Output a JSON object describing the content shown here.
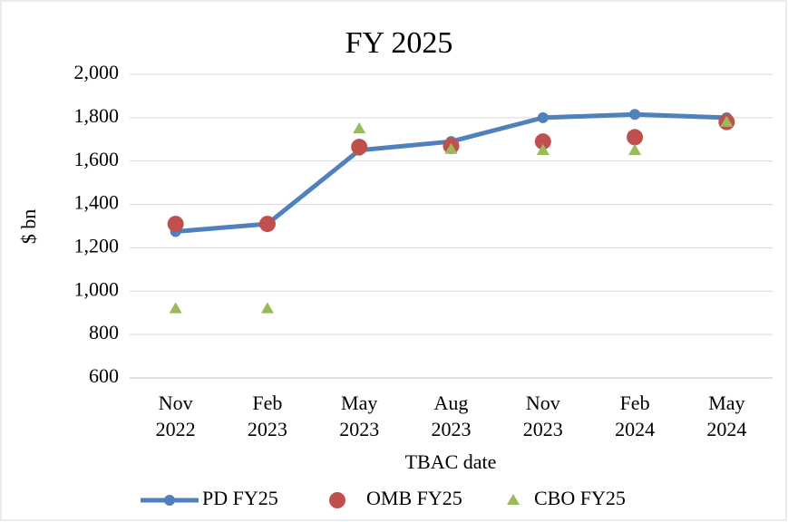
{
  "chart_data": {
    "type": "line",
    "title": "FY 2025",
    "y_label": "$ bn",
    "x_label": "TBAC date",
    "categories": [
      "Nov 2022",
      "Feb 2023",
      "May 2023",
      "Aug 2023",
      "Nov 2023",
      "Feb 2024",
      "May 2024"
    ],
    "series": [
      {
        "name": "PD FY25",
        "color": "#4f81bd",
        "style": "line",
        "marker": "circle",
        "values": [
          1275,
          1310,
          1650,
          1690,
          1800,
          1815,
          1800
        ]
      },
      {
        "name": "OMB FY25",
        "color": "#c0504d",
        "style": "markers",
        "marker": "circle",
        "values": [
          1310,
          1310,
          1665,
          1670,
          1690,
          1710,
          1780
        ]
      },
      {
        "name": "CBO FY25",
        "color": "#9bbb59",
        "style": "markers",
        "marker": "triangle",
        "values": [
          920,
          920,
          1750,
          1655,
          1650,
          1650,
          1780
        ]
      }
    ],
    "ylim": [
      600,
      2000
    ],
    "yticks": [
      600,
      800,
      {
        "value": 1000,
        "label": "1,000"
      },
      {
        "value": 1200,
        "label": "1,200"
      },
      {
        "value": 1400,
        "label": "1,400"
      },
      {
        "value": 1600,
        "label": "1,600"
      },
      {
        "value": 1800,
        "label": "1,800"
      },
      {
        "value": 2000,
        "label": "2,000"
      }
    ],
    "grid": true,
    "legend": "bottom"
  }
}
